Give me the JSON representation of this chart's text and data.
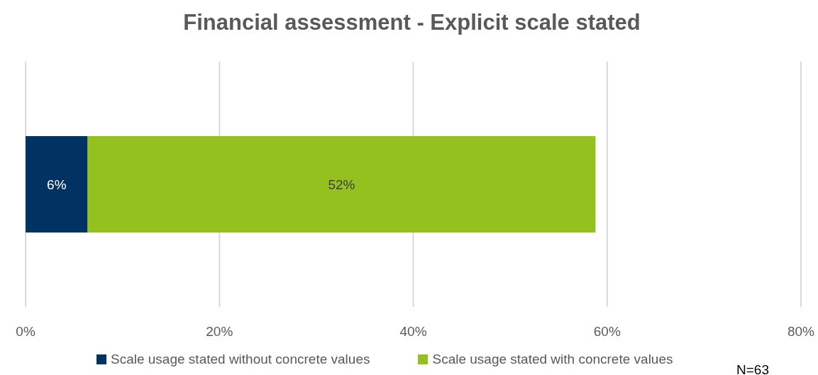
{
  "chart_data": {
    "type": "bar",
    "orientation": "horizontal",
    "stacked": true,
    "title": "Financial assessment - Explicit scale stated",
    "categories": [
      null
    ],
    "series": [
      {
        "name": "Scale usage stated without concrete values",
        "color": "#003361",
        "values": [
          6.4
        ],
        "value_labels": [
          "6%"
        ]
      },
      {
        "name": "Scale usage stated with concrete values",
        "color": "#95c11f",
        "values": [
          52.4
        ],
        "value_labels": [
          "52%"
        ]
      }
    ],
    "xlim": [
      0,
      80
    ],
    "xticks": [
      {
        "value": 0,
        "label": "0%"
      },
      {
        "value": 20,
        "label": "20%"
      },
      {
        "value": 40,
        "label": "40%"
      },
      {
        "value": 60,
        "label": "60%"
      },
      {
        "value": 80,
        "label": "80%"
      }
    ],
    "grid": "x",
    "legend": "bottom",
    "annotations": [
      "N=63"
    ]
  }
}
